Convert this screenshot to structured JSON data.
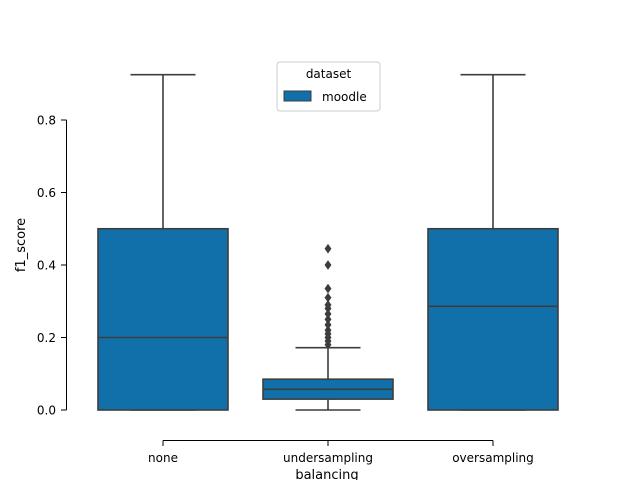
{
  "chart_data": {
    "type": "box",
    "xlabel": "balancing",
    "ylabel": "f1_score",
    "ylim": [
      -0.08,
      1.0
    ],
    "yticks": [
      0.0,
      0.2,
      0.4,
      0.6,
      0.8
    ],
    "ytick_labels": [
      "0.0",
      "0.2",
      "0.4",
      "0.6",
      "0.8"
    ],
    "categories": [
      "none",
      "undersampling",
      "oversampling"
    ],
    "legend": {
      "title": "dataset",
      "placement": "top-center",
      "entries": [
        "moodle"
      ]
    },
    "series": [
      {
        "name": "moodle",
        "color": "#1170aa",
        "boxes": [
          {
            "category": "none",
            "min": 0.0,
            "q1": 0.0,
            "median": 0.2,
            "q3": 0.5,
            "max": 0.925,
            "outliers": []
          },
          {
            "category": "undersampling",
            "min": 0.0,
            "q1": 0.03,
            "median": 0.057,
            "q3": 0.085,
            "max": 0.172,
            "outliers": [
              0.18,
              0.19,
              0.2,
              0.21,
              0.22,
              0.235,
              0.25,
              0.265,
              0.28,
              0.29,
              0.31,
              0.335,
              0.4,
              0.445
            ]
          },
          {
            "category": "oversampling",
            "min": 0.0,
            "q1": 0.0,
            "median": 0.286,
            "q3": 0.5,
            "max": 0.925,
            "outliers": []
          }
        ]
      }
    ]
  }
}
